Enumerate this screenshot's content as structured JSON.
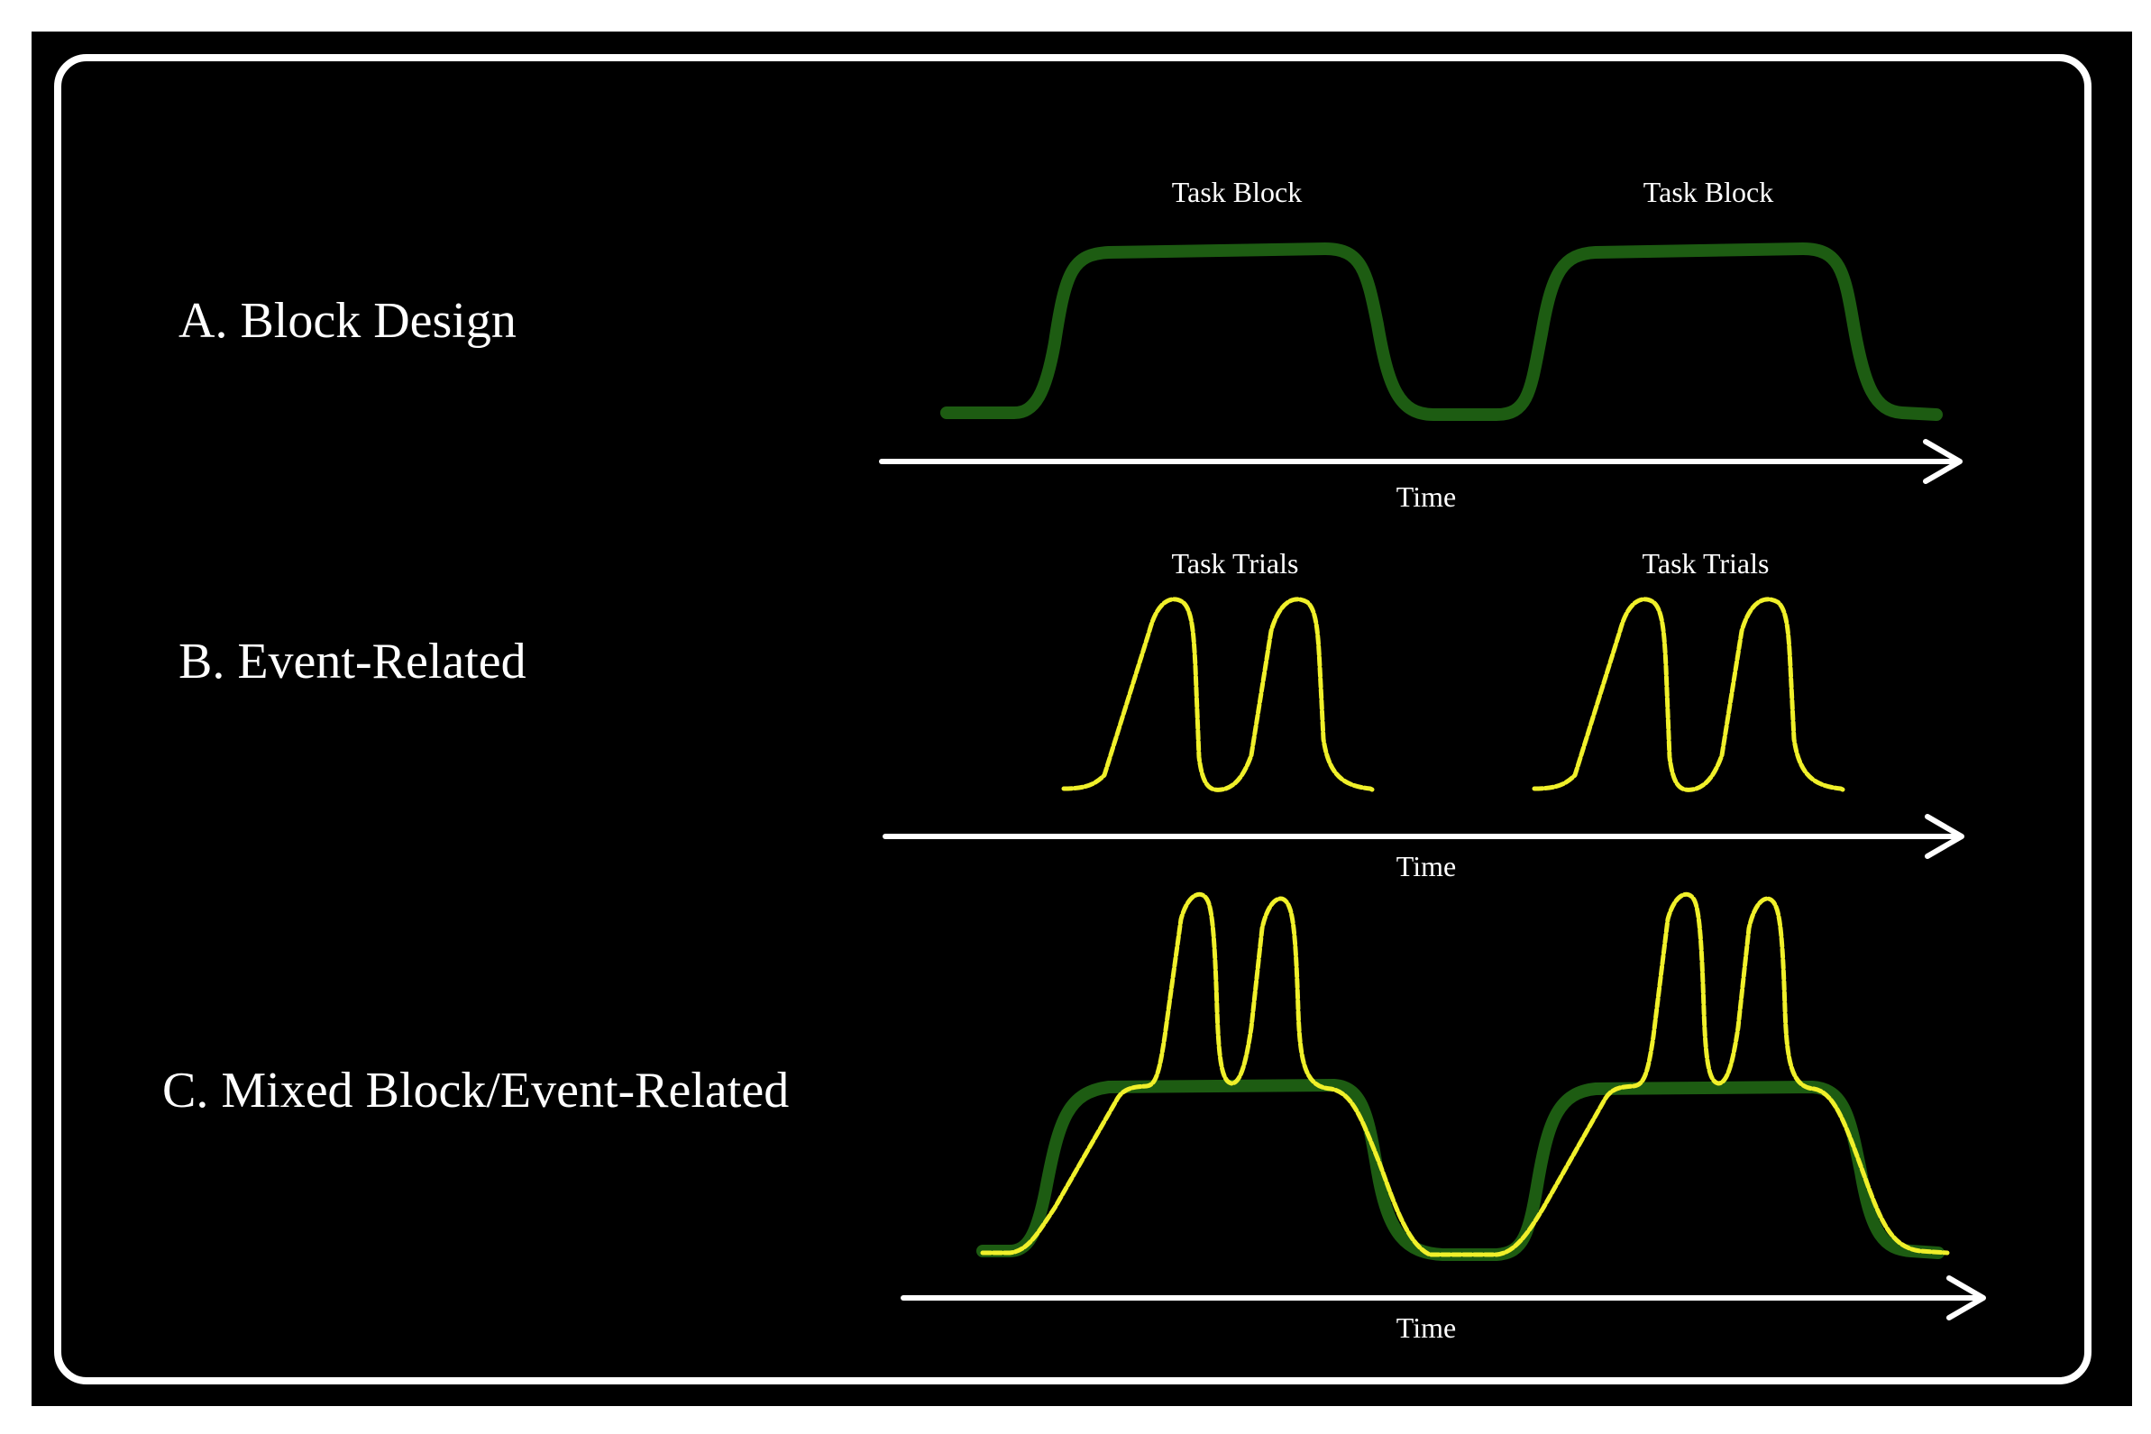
{
  "colors": {
    "background": "#000000",
    "frame": "#ffffff",
    "block_curve": "#1d5c12",
    "event_curve": "#f0f02a",
    "text": "#ffffff"
  },
  "rows": [
    {
      "label": "A. Block Design",
      "segment_label": "Task Block",
      "segment_labels": [
        "Task Block",
        "Task Block"
      ],
      "axis_label": "Time"
    },
    {
      "label": "B. Event-Related",
      "segment_labels": [
        "Task Trials",
        "Task Trials"
      ],
      "axis_label": "Time"
    },
    {
      "label": "C. Mixed Block/Event-Related",
      "axis_label": "Time"
    }
  ]
}
